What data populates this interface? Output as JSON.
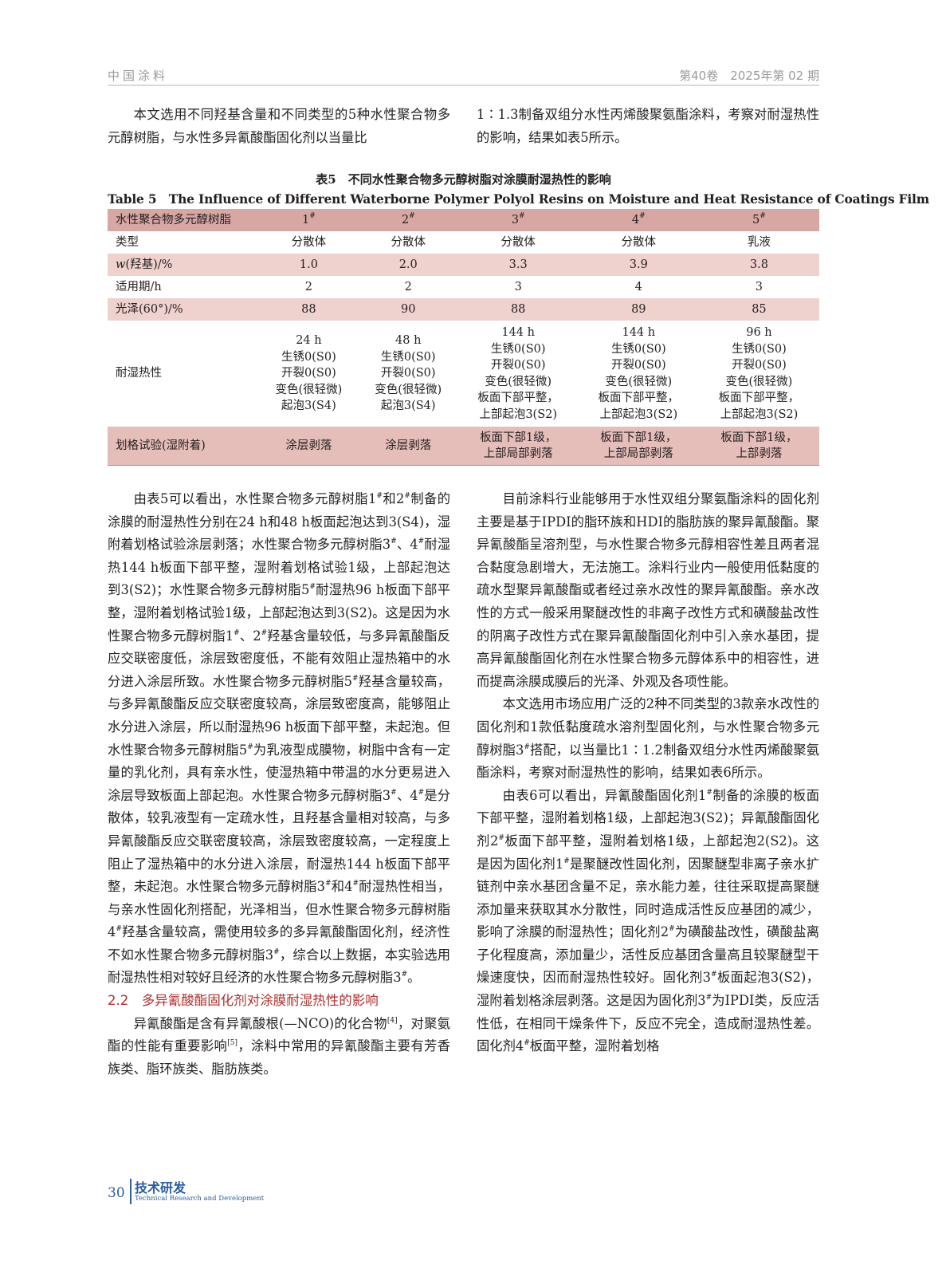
{
  "header": {
    "journal": "中国涂料",
    "issue": "第40卷　2025年第 02 期"
  },
  "intro": {
    "left": "本文选用不同羟基含量和不同类型的5种水性聚合物多元醇树脂，与水性多异氰酸酯固化剂以当量比",
    "right": "1∶1.3制备双组分水性丙烯酸聚氨酯涂料，考察对耐湿热性的影响，结果如表5所示。"
  },
  "table": {
    "caption_cn": "表5　不同水性聚合物多元醇树脂对涂膜耐湿热性的影响",
    "caption_en": "Table 5　The Influence of Different Waterborne Polymer Polyol Resins on Moisture and Heat Resistance of Coatings Film",
    "columns": [
      "水性聚合物多元醇树脂",
      "1#",
      "2#",
      "3#",
      "4#",
      "5#"
    ],
    "rows": [
      [
        "类型",
        "分散体",
        "分散体",
        "分散体",
        "分散体",
        "乳液"
      ],
      [
        "w(羟基)/%",
        "1.0",
        "2.0",
        "3.3",
        "3.9",
        "3.8"
      ],
      [
        "适用期/h",
        "2",
        "2",
        "3",
        "4",
        "3"
      ],
      [
        "光泽(60°)/%",
        "88",
        "90",
        "88",
        "89",
        "85"
      ],
      [
        "耐湿热性",
        "24 h\n生锈0(S0)\n开裂0(S0)\n变色(很轻微)\n起泡3(S4)",
        "48 h\n生锈0(S0)\n开裂0(S0)\n变色(很轻微)\n起泡3(S4)",
        "144 h\n生锈0(S0)\n开裂0(S0)\n变色(很轻微)\n板面下部平整，\n上部起泡3(S2)",
        "144 h\n生锈0(S0)\n开裂0(S0)\n变色(很轻微)\n板面下部平整，\n上部起泡3(S2)",
        "96 h\n生锈0(S0)\n开裂0(S0)\n变色(很轻微)\n板面下部平整，\n上部起泡3(S2)"
      ],
      [
        "划格试验(湿附着)",
        "涂层剥落",
        "涂层剥落",
        "板面下部1级，\n上部局部剥落",
        "板面下部1级，\n上部局部剥落",
        "板面下部1级，\n上部剥落"
      ]
    ]
  },
  "left_col": {
    "p1": "由表5可以看出，水性聚合物多元醇树脂1#和2#制备的涂膜的耐湿热性分别在24 h和48 h板面起泡达到3(S4)，湿附着划格试验涂层剥落；水性聚合物多元醇树脂3#、4#耐湿热144 h板面下部平整，湿附着划格试验1级，上部起泡达到3(S2)；水性聚合物多元醇树脂5#耐湿热96 h板面下部平整，湿附着划格试验1级，上部起泡达到3(S2)。这是因为水性聚合物多元醇树脂1#、2#羟基含量较低，与多异氰酸酯反应交联密度低，涂层致密度低，不能有效阻止湿热箱中的水分进入涂层所致。水性聚合物多元醇树脂5#羟基含量较高，与多异氰酸酯反应交联密度较高，涂层致密度高，能够阻止水分进入涂层，所以耐湿热96 h板面下部平整，未起泡。但水性聚合物多元醇树脂5#为乳液型成膜物，树脂中含有一定量的乳化剂，具有亲水性，使湿热箱中带温的水分更易进入涂层导致板面上部起泡。水性聚合物多元醇树脂3#、4#是分散体，较乳液型有一定疏水性，且羟基含量相对较高，与多异氰酸酯反应交联密度较高，涂层致密度较高，一定程度上阻止了湿热箱中的水分进入涂层，耐湿热144 h板面下部平整，未起泡。水性聚合物多元醇树脂3#和4#耐湿热性相当，与亲水性固化剂搭配，光泽相当，但水性聚合物多元醇树脂4#羟基含量较高，需使用较多的多异氰酸酯固化剂，经济性不如水性聚合物多元醇树脂3#，综合以上数据，本实验选用耐湿热性相对较好且经济的水性聚合物多元醇树脂3#。",
    "section": "2.2　多异氰酸酯固化剂对涂膜耐湿热性的影响",
    "p2": "异氰酸酯是含有异氰酸根(—NCO)的化合物[4]，对聚氨酯的性能有重要影响[5]，涂料中常用的异氰酸酯主要有芳香族类、脂环族类、脂肪族类。"
  },
  "right_col": {
    "p1": "目前涂料行业能够用于水性双组分聚氨酯涂料的固化剂主要是基于IPDI的脂环族和HDI的脂肪族的聚异氰酸酯。聚异氰酸酯呈溶剂型，与水性聚合物多元醇相容性差且两者混合黏度急剧增大，无法施工。涂料行业内一般使用低黏度的疏水型聚异氰酸酯或者经过亲水改性的聚异氰酸酯。亲水改性的方式一般采用聚醚改性的非离子改性方式和磺酸盐改性的阴离子改性方式在聚异氰酸酯固化剂中引入亲水基团，提高异氰酸酯固化剂在水性聚合物多元醇体系中的相容性，进而提高涂膜成膜后的光泽、外观及各项性能。",
    "p2": "本文选用市场应用广泛的2种不同类型的3款亲水改性的固化剂和1款低黏度疏水溶剂型固化剂，与水性聚合物多元醇树脂3#搭配，以当量比1∶1.2制备双组分水性丙烯酸聚氨酯涂料，考察对耐湿热性的影响，结果如表6所示。",
    "p3": "由表6可以看出，异氰酸酯固化剂1#制备的涂膜的板面下部平整，湿附着划格1级，上部起泡3(S2)；异氰酸酯固化剂2#板面下部平整，湿附着划格1级，上部起泡2(S2)。这是因为固化剂1#是聚醚改性固化剂，因聚醚型非离子亲水扩链剂中亲水基团含量不足，亲水能力差，往往采取提高聚醚添加量来获取其水分散性，同时造成活性反应基团的减少，影响了涂膜的耐湿热性；固化剂2#为磺酸盐改性，磺酸盐离子化程度高，添加量少，活性反应基团含量高且较聚醚型干燥速度快，因而耐湿热性较好。固化剂3#板面起泡3(S2)，湿附着划格涂层剥落。这是因为固化剂3#为IPDI类，反应活性低，在相同干燥条件下，反应不完全，造成耐湿热性差。固化剂4#板面平整，湿附着划格"
  },
  "footer": {
    "page": "30",
    "section_cn": "技术研发",
    "section_en": "Technical Research and Development"
  }
}
